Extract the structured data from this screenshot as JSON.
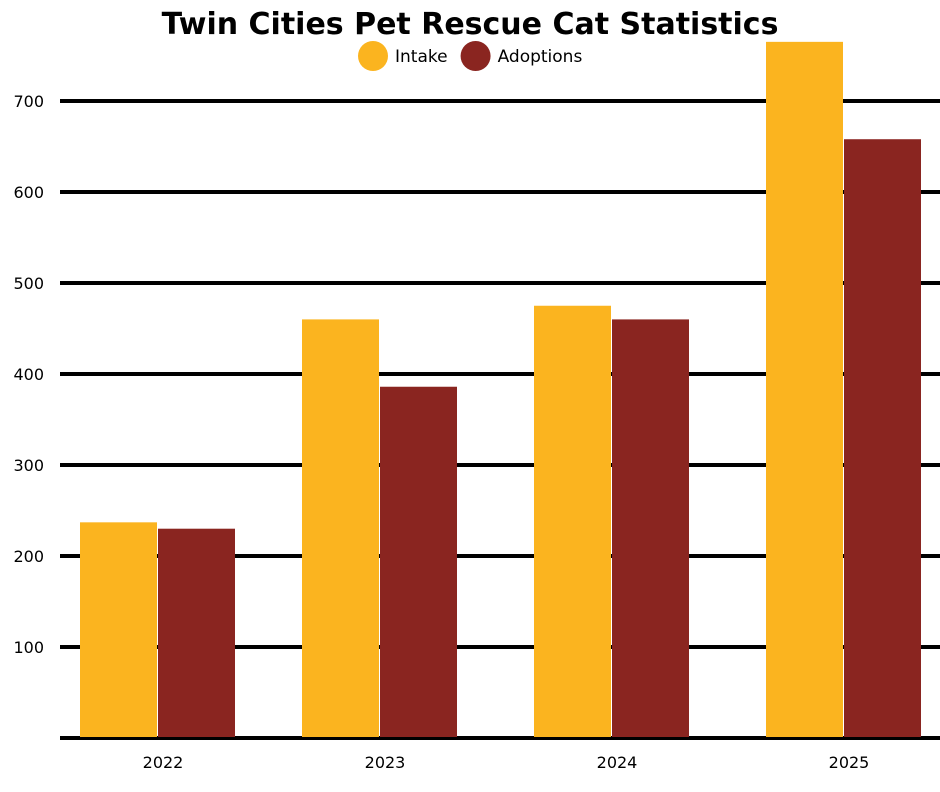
{
  "chart_data": {
    "type": "bar",
    "title": "Twin Cities Pet Rescue Cat Statistics",
    "xlabel": "",
    "ylabel": "",
    "categories": [
      "2022",
      "2023",
      "2024",
      "2025"
    ],
    "series": [
      {
        "name": "Intake",
        "color": "#FBB41F",
        "values": [
          237,
          460,
          475,
          765
        ]
      },
      {
        "name": "Adoptions",
        "color": "#8A2520",
        "values": [
          230,
          386,
          460,
          658
        ]
      }
    ],
    "yticks": [
      100,
      200,
      300,
      400,
      500,
      600,
      700
    ],
    "ylim": [
      0,
      780
    ],
    "grid": true,
    "legend_position": "top-center"
  }
}
